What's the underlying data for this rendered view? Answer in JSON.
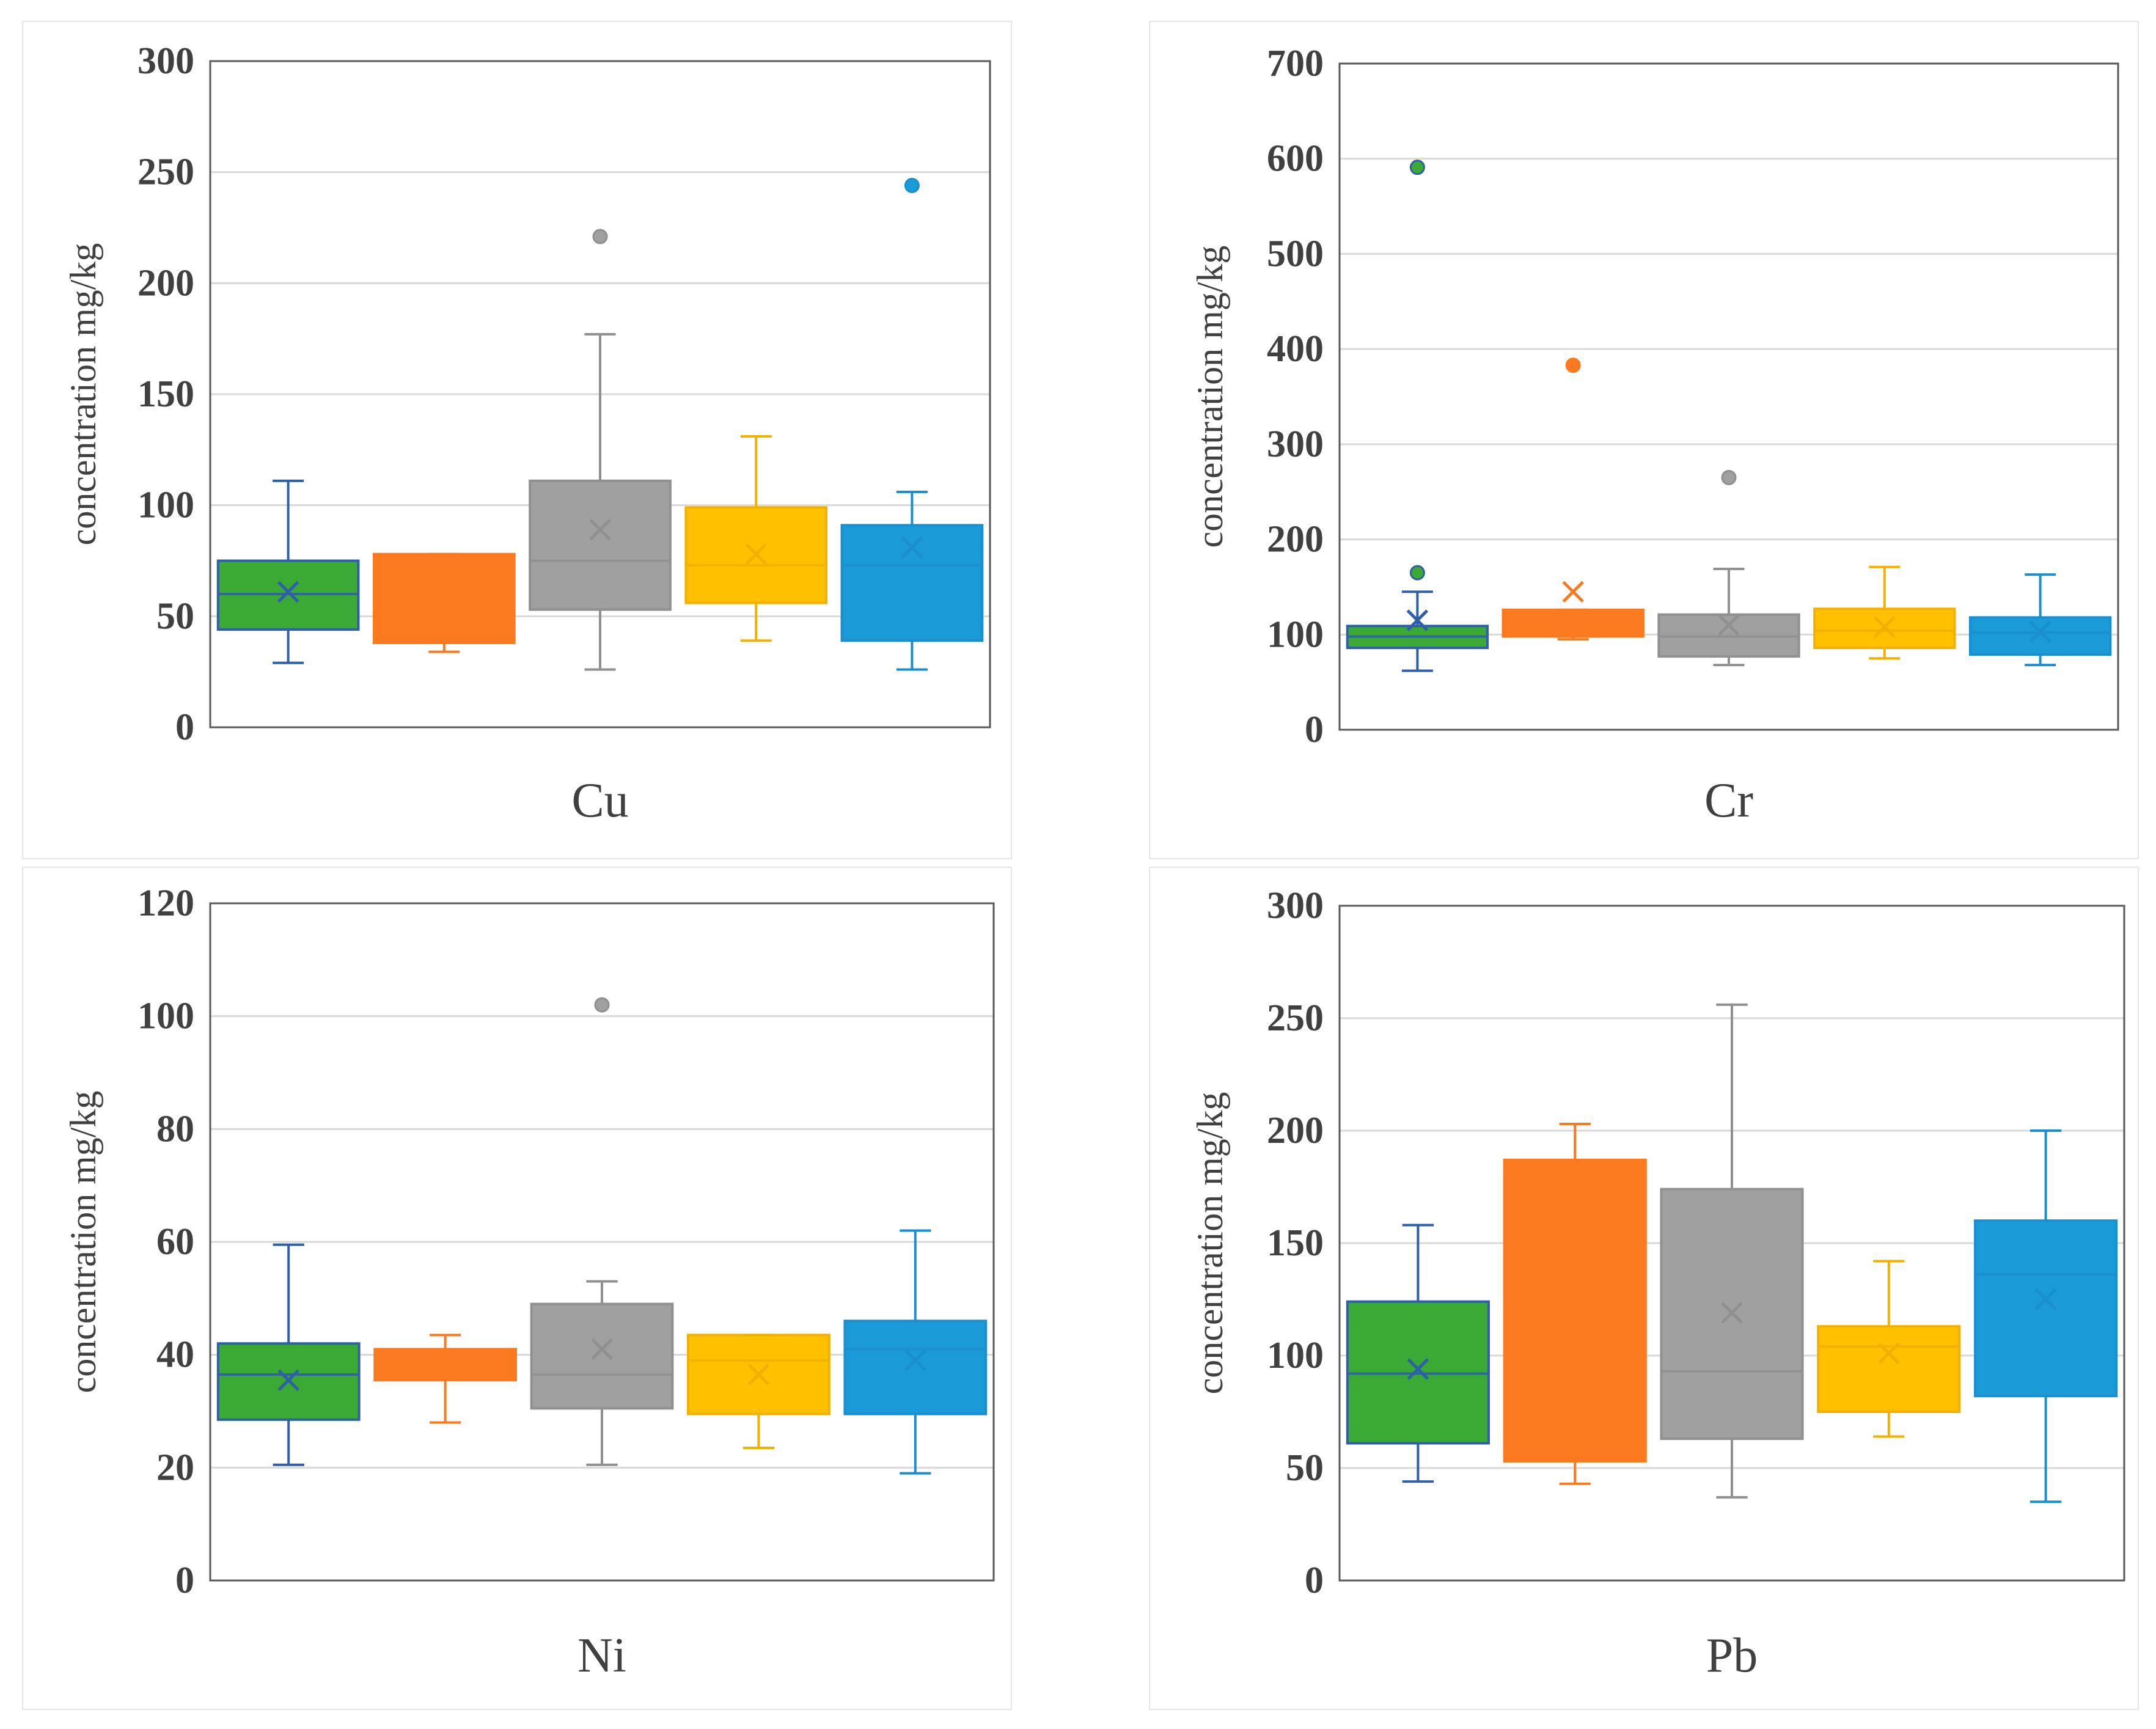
{
  "colors": [
    "#3aaa35",
    "#fb7a20",
    "#a0a0a0",
    "#ffc000",
    "#1a9ad6"
  ],
  "whisker_colors": [
    "#2e5fa8",
    "#fb7a20",
    "#909090",
    "#f2b000",
    "#1a8fd0"
  ],
  "chart_data": [
    {
      "type": "boxplot",
      "title": "Cu",
      "ylabel": "concentration  mg/kg",
      "ylim": [
        0,
        300
      ],
      "yticks": [
        0,
        50,
        100,
        150,
        200,
        250,
        300
      ],
      "boxes": [
        {
          "min": 29,
          "q1": 44,
          "median": 60,
          "q3": 75,
          "max": 111,
          "mean": 61,
          "outliers": []
        },
        {
          "min": 34,
          "q1": 38,
          "median": 56,
          "q3": 78,
          "max": 78,
          "mean": 57,
          "outliers": []
        },
        {
          "min": 26,
          "q1": 53,
          "median": 75,
          "q3": 111,
          "max": 177,
          "mean": 89,
          "outliers": [
            221
          ]
        },
        {
          "min": 39,
          "q1": 56,
          "median": 73,
          "q3": 99,
          "max": 131,
          "mean": 78,
          "outliers": []
        },
        {
          "min": 26,
          "q1": 39,
          "median": 73,
          "q3": 91,
          "max": 106,
          "mean": 81,
          "outliers": [
            244
          ]
        }
      ]
    },
    {
      "type": "boxplot",
      "title": "Cr",
      "ylabel": "concentration  mg/kg",
      "ylim": [
        0,
        700
      ],
      "yticks": [
        0,
        100,
        200,
        300,
        400,
        500,
        600,
        700
      ],
      "boxes": [
        {
          "min": 62,
          "q1": 86,
          "median": 98,
          "q3": 109,
          "max": 145,
          "mean": 115,
          "outliers": [
            165,
            591
          ]
        },
        {
          "min": 95,
          "q1": 98,
          "median": 100,
          "q3": 126,
          "max": 126,
          "mean": 145,
          "outliers": [
            383
          ]
        },
        {
          "min": 68,
          "q1": 77,
          "median": 98,
          "q3": 121,
          "max": 169,
          "mean": 110,
          "outliers": [
            265
          ]
        },
        {
          "min": 75,
          "q1": 86,
          "median": 104,
          "q3": 127,
          "max": 171,
          "mean": 108,
          "outliers": []
        },
        {
          "min": 68,
          "q1": 79,
          "median": 102,
          "q3": 118,
          "max": 163,
          "mean": 103,
          "outliers": []
        }
      ]
    },
    {
      "type": "boxplot",
      "title": "Ni",
      "ylabel": "concentration  mg/kg",
      "ylim": [
        0,
        120
      ],
      "yticks": [
        0,
        20,
        40,
        60,
        80,
        100,
        120
      ],
      "boxes": [
        {
          "min": 20.5,
          "q1": 28.5,
          "median": 36.5,
          "q3": 42,
          "max": 59.5,
          "mean": 35.5,
          "outliers": []
        },
        {
          "min": 28,
          "q1": 35.5,
          "median": 38.5,
          "q3": 41,
          "max": 43.5,
          "mean": 37.5,
          "outliers": []
        },
        {
          "min": 20.5,
          "q1": 30.5,
          "median": 36.5,
          "q3": 49,
          "max": 53,
          "mean": 41,
          "outliers": [
            102
          ]
        },
        {
          "min": 23.5,
          "q1": 29.5,
          "median": 39,
          "q3": 43.5,
          "max": 43.5,
          "mean": 36.5,
          "outliers": []
        },
        {
          "min": 19,
          "q1": 29.5,
          "median": 41,
          "q3": 46,
          "max": 62,
          "mean": 39,
          "outliers": []
        }
      ]
    },
    {
      "type": "boxplot",
      "title": "Pb",
      "ylabel": "concentration  mg/kg",
      "ylim": [
        0,
        300
      ],
      "yticks": [
        0,
        50,
        100,
        150,
        200,
        250,
        300
      ],
      "boxes": [
        {
          "min": 44,
          "q1": 61,
          "median": 92,
          "q3": 124,
          "max": 158,
          "mean": 94,
          "outliers": []
        },
        {
          "min": 43,
          "q1": 53,
          "median": 56,
          "q3": 187,
          "max": 203,
          "mean": 107,
          "outliers": []
        },
        {
          "min": 37,
          "q1": 63,
          "median": 93,
          "q3": 174,
          "max": 256,
          "mean": 119,
          "outliers": []
        },
        {
          "min": 64,
          "q1": 75,
          "median": 104,
          "q3": 113,
          "max": 142,
          "mean": 101,
          "outliers": []
        },
        {
          "min": 35,
          "q1": 82,
          "median": 136,
          "q3": 160,
          "max": 200,
          "mean": 125,
          "outliers": []
        }
      ]
    }
  ]
}
